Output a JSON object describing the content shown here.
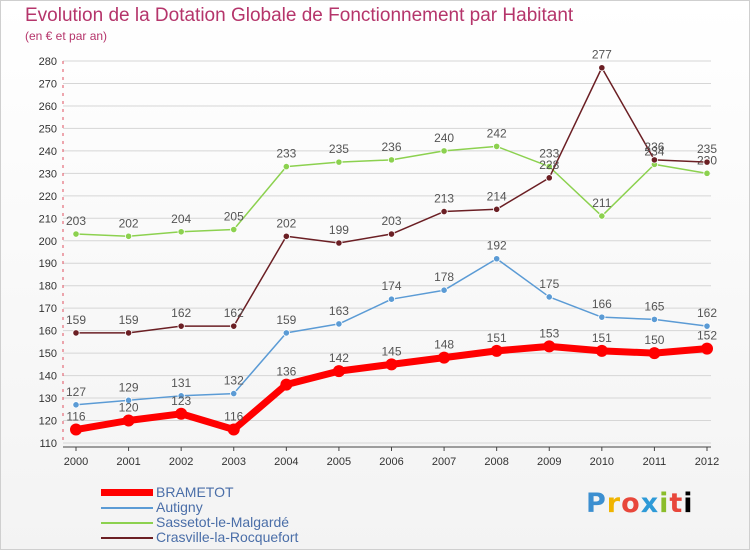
{
  "header": {
    "title": "Evolution de la Dotation Globale de Fonctionnement par Habitant",
    "subtitle": "(en € et par an)"
  },
  "logo": {
    "text": "Proxiti"
  },
  "colors": {
    "title": "#b5356b",
    "axis_text": "#333333",
    "grid": "#d6d6d6",
    "legend_text": "#4a6ea8"
  },
  "chart_data": {
    "type": "line",
    "title": "Evolution de la Dotation Globale de Fonctionnement par Habitant",
    "subtitle": "(en € et par an)",
    "xlabel": "",
    "ylabel": "",
    "x": [
      "2000",
      "2001",
      "2002",
      "2003",
      "2004",
      "2005",
      "2006",
      "2007",
      "2008",
      "2009",
      "2010",
      "2011",
      "2012"
    ],
    "ylim": [
      110,
      280
    ],
    "yticks": [
      110,
      120,
      130,
      140,
      150,
      160,
      170,
      180,
      190,
      200,
      210,
      220,
      230,
      240,
      250,
      260,
      270,
      280
    ],
    "grid": true,
    "legend_position": "bottom-left",
    "series": [
      {
        "name": "BRAMETOT",
        "color": "#ff0000",
        "emphasis": true,
        "values": [
          116,
          120,
          123,
          116,
          136,
          142,
          145,
          148,
          151,
          153,
          151,
          150,
          152
        ]
      },
      {
        "name": "Autigny",
        "color": "#5b9bd5",
        "emphasis": false,
        "values": [
          127,
          129,
          131,
          132,
          159,
          163,
          174,
          178,
          192,
          175,
          166,
          165,
          162
        ]
      },
      {
        "name": "Sassetot-le-Malgardé",
        "color": "#8cd14f",
        "emphasis": false,
        "values": [
          203,
          202,
          204,
          205,
          233,
          235,
          236,
          240,
          242,
          233,
          211,
          234,
          230
        ]
      },
      {
        "name": "Crasville-la-Rocquefort",
        "color": "#6b1f24",
        "emphasis": false,
        "values": [
          159,
          159,
          162,
          162,
          202,
          199,
          203,
          213,
          214,
          228,
          277,
          236,
          235
        ]
      }
    ]
  }
}
